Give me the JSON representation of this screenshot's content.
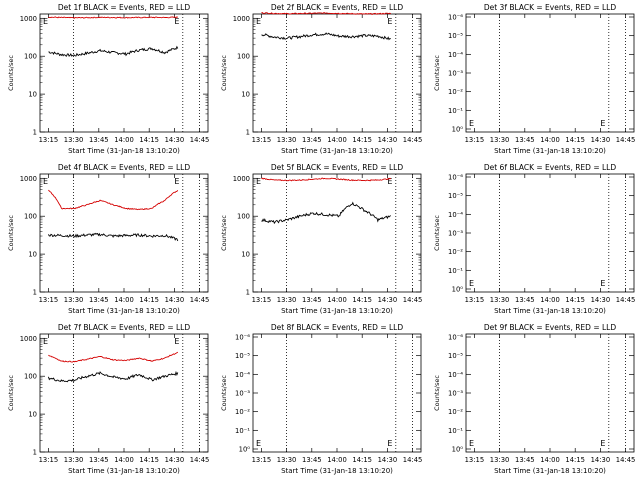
{
  "time_ticks": [
    "13:15",
    "13:30",
    "13:45",
    "14:00",
    "14:15",
    "14:30",
    "14:45"
  ],
  "colors": {
    "events": "#000000",
    "lld": "#d40000",
    "axis": "#000000"
  },
  "chart_data": [
    {
      "type": "line",
      "title": "Det 1f BLACK = Events, RED = LLD",
      "ylabel": "Counts/sec",
      "xlabel": "Start Time (31-Jan-18 13:10:20)",
      "yscale": "log",
      "yticks": [
        "1",
        "10",
        "100",
        "1000"
      ],
      "ylim": [
        1,
        1300
      ],
      "x_minutes": [
        0,
        10,
        20,
        30,
        40,
        50,
        60,
        70,
        80,
        90,
        100
      ],
      "grid": false,
      "series": [
        {
          "name": "BLACK = Events",
          "values": [
            130,
            110,
            105,
            120,
            140,
            125,
            115,
            145,
            160,
            125,
            170
          ]
        },
        {
          "name": "RED = LLD",
          "values": [
            1080,
            1050,
            1030,
            1040,
            1060,
            1050,
            1040,
            1050,
            1060,
            1050,
            1070
          ]
        }
      ]
    },
    {
      "type": "line",
      "title": "Det 2f BLACK = Events, RED = LLD",
      "ylabel": "Counts/sec",
      "xlabel": "Start Time (31-Jan-18 13:10:20)",
      "yscale": "log",
      "yticks": [
        "1",
        "10",
        "100",
        "1000"
      ],
      "ylim": [
        1,
        1300
      ],
      "x_minutes": [
        0,
        10,
        20,
        30,
        40,
        50,
        60,
        70,
        80,
        90,
        100
      ],
      "grid": false,
      "series": [
        {
          "name": "BLACK = Events",
          "values": [
            380,
            320,
            300,
            330,
            370,
            390,
            340,
            330,
            350,
            340,
            280
          ]
        },
        {
          "name": "RED = LLD",
          "values": [
            1400,
            1350,
            1320,
            1340,
            1360,
            1380,
            1350,
            1320,
            1300,
            1320,
            1350
          ]
        }
      ]
    },
    {
      "type": "line",
      "title": "Det 3f BLACK = Events, RED = LLD",
      "ylabel": "Counts/sec",
      "xlabel": "Start Time (31-Jan-18 13:10:20)",
      "yscale": "log",
      "yticks": [
        "10⁰",
        "10⁻¹",
        "10⁻²",
        "10⁻³",
        "10⁻⁴",
        "10⁻⁵",
        "10⁻⁶"
      ],
      "x_minutes": [],
      "grid": false,
      "series": []
    },
    {
      "type": "line",
      "title": "Det 4f BLACK = Events, RED = LLD",
      "ylabel": "Counts/sec",
      "xlabel": "Start Time (31-Jan-18 13:10:20)",
      "yscale": "log",
      "yticks": [
        "1",
        "10",
        "100",
        "1000"
      ],
      "ylim": [
        1,
        1300
      ],
      "x_minutes": [
        0,
        10,
        20,
        30,
        40,
        50,
        60,
        70,
        80,
        90,
        100
      ],
      "grid": false,
      "series": [
        {
          "name": "BLACK = Events",
          "values": [
            32,
            31,
            30,
            32,
            33,
            30,
            31,
            32,
            30,
            31,
            24
          ]
        },
        {
          "name": "RED = LLD",
          "values": [
            480,
            160,
            160,
            200,
            260,
            200,
            160,
            150,
            160,
            260,
            480
          ]
        }
      ]
    },
    {
      "type": "line",
      "title": "Det 5f BLACK = Events, RED = LLD",
      "ylabel": "Counts/sec",
      "xlabel": "Start Time (31-Jan-18 13:10:20)",
      "yscale": "log",
      "yticks": [
        "1",
        "10",
        "100",
        "1000"
      ],
      "ylim": [
        1,
        1300
      ],
      "x_minutes": [
        0,
        10,
        20,
        30,
        40,
        50,
        60,
        70,
        80,
        90,
        100
      ],
      "grid": false,
      "series": [
        {
          "name": "BLACK = Events",
          "values": [
            80,
            70,
            80,
            100,
            120,
            110,
            100,
            220,
            140,
            80,
            100
          ]
        },
        {
          "name": "RED = LLD",
          "values": [
            1000,
            900,
            880,
            900,
            950,
            1000,
            950,
            900,
            880,
            900,
            980
          ]
        }
      ]
    },
    {
      "type": "line",
      "title": "Det 6f BLACK = Events, RED = LLD",
      "ylabel": "Counts/sec",
      "xlabel": "Start Time (31-Jan-18 13:10:20)",
      "yscale": "log",
      "yticks": [
        "10⁰",
        "10⁻¹",
        "10⁻²",
        "10⁻³",
        "10⁻⁴",
        "10⁻⁵",
        "10⁻⁶"
      ],
      "x_minutes": [],
      "grid": false,
      "series": []
    },
    {
      "type": "line",
      "title": "Det 7f BLACK = Events, RED = LLD",
      "ylabel": "Counts/sec",
      "xlabel": "Start Time (31-Jan-18 13:10:20)",
      "yscale": "log",
      "yticks": [
        "1",
        "10",
        "100",
        "1000"
      ],
      "ylim": [
        1,
        1300
      ],
      "x_minutes": [
        0,
        10,
        20,
        30,
        40,
        50,
        60,
        70,
        80,
        90,
        100
      ],
      "grid": false,
      "series": [
        {
          "name": "BLACK = Events",
          "values": [
            90,
            75,
            78,
            100,
            120,
            95,
            85,
            110,
            80,
            100,
            120
          ]
        },
        {
          "name": "RED = LLD",
          "values": [
            360,
            250,
            240,
            280,
            330,
            270,
            260,
            300,
            250,
            300,
            420
          ]
        }
      ]
    },
    {
      "type": "line",
      "title": "Det 8f BLACK = Events, RED = LLD",
      "ylabel": "Counts/sec",
      "xlabel": "Start Time (31-Jan-18 13:10:20)",
      "yscale": "log",
      "yticks": [
        "10⁰",
        "10⁻¹",
        "10⁻²",
        "10⁻³",
        "10⁻⁴",
        "10⁻⁵",
        "10⁻⁶"
      ],
      "x_minutes": [],
      "grid": false,
      "series": []
    },
    {
      "type": "line",
      "title": "Det 9f BLACK = Events, RED = LLD",
      "ylabel": "Counts/sec",
      "xlabel": "Start Time (31-Jan-18 13:10:20)",
      "yscale": "log",
      "yticks": [
        "10⁰",
        "10⁻¹",
        "10⁻²",
        "10⁻³",
        "10⁻⁴",
        "10⁻⁵",
        "10⁻⁶"
      ],
      "x_minutes": [],
      "grid": false,
      "series": []
    }
  ]
}
